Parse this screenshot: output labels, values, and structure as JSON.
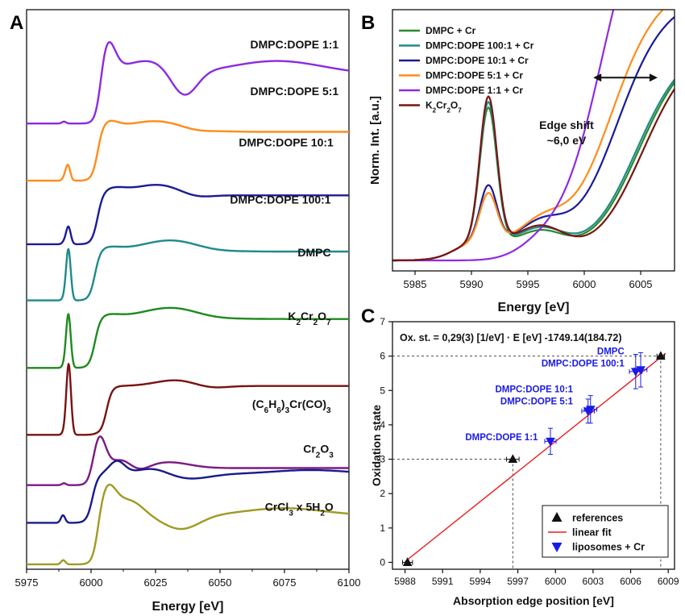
{
  "panels": [
    {
      "id": "a",
      "letter": "A"
    },
    {
      "id": "b",
      "letter": "B"
    },
    {
      "id": "c",
      "letter": "C"
    }
  ],
  "chart_data": [
    {
      "panel": "A",
      "type": "line",
      "xlabel": "Energy [eV]",
      "ylabel": "",
      "xlim": [
        5975,
        6100
      ],
      "xticks": [
        5975,
        6000,
        6025,
        6050,
        6075,
        6100
      ],
      "yticks": "none",
      "grid": false,
      "legend": "none",
      "series": [
        {
          "name": "DMPC:DOPE 1:1",
          "name_parts": [
            [
              "DMPC:DOPE 1:1",
              ""
            ]
          ],
          "color": "#8B2BE2",
          "offset": 9.02,
          "edge": 6003.5,
          "step": 1.0,
          "peak": [
            5991.3,
            0.0,
            1.0
          ],
          "feats": [
            [
              6006,
              0.72,
              3
            ],
            [
              6022,
              0.28,
              10
            ],
            [
              6036,
              -0.55,
              5
            ],
            [
              6072,
              0.28,
              18
            ]
          ],
          "label_x": 6096,
          "label_y": 10.56,
          "anchor": "end"
        },
        {
          "name": "DMPC:DOPE 5:1",
          "name_parts": [
            [
              "DMPC:DOPE 5:1",
              ""
            ]
          ],
          "color": "#FF8C1A",
          "offset": 7.85,
          "edge": 6002.5,
          "step": 1.0,
          "peak": [
            5991.0,
            0.32,
            0.9
          ],
          "feats": [
            [
              6006,
              0.18,
              4
            ],
            [
              6025,
              0.22,
              12
            ],
            [
              6040,
              -0.05,
              6
            ]
          ],
          "label_x": 6096,
          "label_y": 9.6,
          "anchor": "end"
        },
        {
          "name": "DMPC:DOPE 10:1",
          "name_parts": [
            [
              "DMPC:DOPE 10:1",
              ""
            ]
          ],
          "color": "#1B1B9A",
          "offset": 6.55,
          "edge": 6002.5,
          "step": 1.0,
          "peak": [
            5991.2,
            0.36,
            0.9
          ],
          "feats": [
            [
              6008,
              0.12,
              5
            ],
            [
              6026,
              0.22,
              10
            ],
            [
              6040,
              -0.08,
              6
            ]
          ],
          "label_x": 6094,
          "label_y": 8.55,
          "anchor": "end"
        },
        {
          "name": "DMPC:DOPE 100:1",
          "name_parts": [
            [
              "DMPC:DOPE 100:1",
              ""
            ]
          ],
          "color": "#1E8A8A",
          "offset": 5.4,
          "edge": 6001.5,
          "step": 1.0,
          "peak": [
            5991.2,
            1.05,
            0.9
          ],
          "feats": [
            [
              6006,
              0.08,
              5
            ],
            [
              6032,
              0.24,
              12
            ],
            [
              6045,
              -0.05,
              8
            ]
          ],
          "label_x": 6093,
          "label_y": 7.38,
          "anchor": "end"
        },
        {
          "name": "DMPC",
          "name_parts": [
            [
              "DMPC",
              ""
            ]
          ],
          "color": "#1E8A1E",
          "offset": 4.02,
          "edge": 6001.5,
          "step": 1.0,
          "peak": [
            5991.2,
            1.1,
            0.9
          ],
          "feats": [
            [
              6006,
              0.08,
              5
            ],
            [
              6032,
              0.24,
              12
            ],
            [
              6045,
              -0.05,
              8
            ]
          ],
          "label_x": 6093,
          "label_y": 6.3,
          "anchor": "end"
        },
        {
          "name": "K2Cr2O7",
          "name_parts": [
            [
              "K",
              ""
            ],
            [
              "2",
              "sub"
            ],
            [
              "Cr",
              ""
            ],
            [
              "2",
              "sub"
            ],
            [
              "O",
              ""
            ],
            [
              "7",
              "sub"
            ]
          ],
          "color": "#7A1212",
          "offset": 2.65,
          "edge": 6006.0,
          "step": 1.0,
          "peak": [
            5991.3,
            1.45,
            0.9
          ],
          "feats": [
            [
              6001,
              0.2,
              1.5
            ],
            [
              6033,
              0.12,
              8
            ],
            [
              6046,
              -0.05,
              6
            ]
          ],
          "label_x": 6093,
          "label_y": 5.0,
          "anchor": "end"
        },
        {
          "name": "(C6H6)3Cr(CO)3",
          "name_parts": [
            [
              "(C",
              ""
            ],
            [
              "6",
              "sub"
            ],
            [
              "H",
              ""
            ],
            [
              "6",
              "sub"
            ],
            [
              ")",
              ""
            ],
            [
              "3",
              "sub"
            ],
            [
              "Cr(CO)",
              ""
            ],
            [
              "3",
              "sub"
            ]
          ],
          "color": "#7B1A82",
          "offset": 1.62,
          "edge": 6000.0,
          "step": 0.35,
          "peak": [
            5991.0,
            0.0,
            1.0
          ],
          "feats": [
            [
              6003,
              0.72,
              2.5
            ],
            [
              6012,
              0.18,
              4
            ],
            [
              6018,
              -0.1,
              4
            ],
            [
              6030,
              0.12,
              8
            ]
          ],
          "label_x": 6093,
          "label_y": 3.2,
          "anchor": "end"
        },
        {
          "name": "Cr2O3",
          "name_parts": [
            [
              "Cr",
              ""
            ],
            [
              "2",
              "sub"
            ],
            [
              "O",
              ""
            ],
            [
              "3",
              "sub"
            ]
          ],
          "color": "#1A1A8C",
          "offset": 0.85,
          "edge": 6000.5,
          "step": 1.0,
          "peak": [
            5989.0,
            0.12,
            0.8
          ],
          "feats": [
            [
              6010,
              0.26,
              3
            ],
            [
              6024,
              0.12,
              6
            ],
            [
              6038,
              -0.1,
              8
            ],
            [
              6085,
              0.08,
              14
            ]
          ],
          "label_x": 6094,
          "label_y": 2.28,
          "anchor": "end"
        },
        {
          "name": "CrCl3 x 5H2O",
          "name_parts": [
            [
              "CrCl",
              ""
            ],
            [
              "3",
              "sub"
            ],
            [
              " x 5H",
              ""
            ],
            [
              "2",
              "sub"
            ],
            [
              "O",
              ""
            ]
          ],
          "color": "#A09A22",
          "offset": 0.0,
          "edge": 6002.5,
          "step": 1.0,
          "peak": [
            5989.0,
            0.05,
            0.8
          ],
          "feats": [
            [
              6006,
              0.62,
              3.5
            ],
            [
              6015,
              0.3,
              5
            ],
            [
              6035,
              -0.28,
              7
            ],
            [
              6075,
              0.15,
              15
            ]
          ],
          "label_x": 6094,
          "label_y": 1.1,
          "anchor": "end"
        }
      ]
    },
    {
      "panel": "B",
      "type": "line",
      "xlabel": "Energy [eV]",
      "ylabel": "Norm. Int. [a.u.]",
      "xlim": [
        5983,
        6008
      ],
      "xticks": [
        5985,
        5990,
        5995,
        6000,
        6005
      ],
      "yticks": "none",
      "grid": false,
      "legend": "top-left",
      "annotation": {
        "lines": [
          "Edge shift",
          "~6,0 eV"
        ],
        "arrow_from": 6000.8,
        "arrow_to": 6006.5,
        "arrow_y": 0.72
      },
      "series": [
        {
          "name": "DMPC + Cr",
          "name_parts": [
            [
              "DMPC + Cr",
              ""
            ]
          ],
          "color": "#2A8A2A",
          "pk": 0.51,
          "edge": 6004.8,
          "base": 0.1,
          "top": 0.92,
          "w": 2.2
        },
        {
          "name": "DMPC:DOPE 100:1 + Cr",
          "name_parts": [
            [
              "DMPC:DOPE 100:1 + Cr",
              ""
            ]
          ],
          "color": "#1F8B8B",
          "pk": 0.53,
          "edge": 6004.6,
          "base": 0.11,
          "top": 0.92,
          "w": 2.2
        },
        {
          "name": "DMPC:DOPE 10:1 + Cr",
          "name_parts": [
            [
              "DMPC:DOPE 10:1 + Cr",
              ""
            ]
          ],
          "color": "#1A1A9A",
          "pk": 0.21,
          "edge": 6002.8,
          "base": 0.12,
          "top": 1.1,
          "w": 2.2
        },
        {
          "name": "DMPC:DOPE 5:1 + Cr",
          "name_parts": [
            [
              "DMPC:DOPE 5:1 + Cr",
              ""
            ]
          ],
          "color": "#FF8C1A",
          "pk": 0.18,
          "edge": 6002.2,
          "base": 0.12,
          "top": 1.15,
          "w": 2.2
        },
        {
          "name": "DMPC:DOPE 1:1 + Cr",
          "name_parts": [
            [
              "DMPC:DOPE 1:1 + Cr",
              ""
            ]
          ],
          "color": "#8E2BE2",
          "pk": 0.0,
          "edge": 6001.5,
          "base": 0.04,
          "top": 1.6,
          "w": 2.0
        },
        {
          "name": "K2Cr2O7",
          "name_parts": [
            [
              "K",
              ""
            ],
            [
              "2",
              "sub"
            ],
            [
              "Cr",
              ""
            ],
            [
              "2",
              "sub"
            ],
            [
              "O",
              ""
            ],
            [
              "7",
              "sub"
            ]
          ],
          "color": "#7A1414",
          "pk": 0.55,
          "edge": 6005.2,
          "base": 0.12,
          "top": 0.92,
          "w": 2.2
        }
      ]
    },
    {
      "panel": "C",
      "type": "scatter",
      "title": "Ox. st. = 0,29(3) [1/eV] · E [eV] -1749.14(184.72)",
      "xlabel": "Absorption edge position [eV]",
      "ylabel": "Oxidation state",
      "xlim": [
        5987,
        6009.5
      ],
      "ylim": [
        -0.2,
        7
      ],
      "xticks": [
        5988,
        5991,
        5994,
        5997,
        6000,
        6003,
        6006,
        6009
      ],
      "yticks": [
        0,
        1,
        2,
        3,
        4,
        5,
        6,
        7
      ],
      "grid": false,
      "legend": "bottom-right",
      "fit_line": {
        "name": "linear fit",
        "color": "#E81E1E",
        "x": [
          5988.0,
          6008.8
        ],
        "y": [
          0.02,
          6.08
        ]
      },
      "series": [
        {
          "name": "references",
          "marker": "triangle-up",
          "color": "#111111",
          "points": [
            {
              "x": 5988.2,
              "y": 0.0,
              "xerr": 0.4,
              "yerr": 0
            },
            {
              "x": 5996.6,
              "y": 3.0,
              "xerr": 0.5,
              "yerr": 0
            },
            {
              "x": 6008.4,
              "y": 6.0,
              "xerr": 0.3,
              "yerr": 0
            }
          ]
        },
        {
          "name": "liposomes + Cr",
          "marker": "triangle-down",
          "color": "#1A1AE8",
          "points": [
            {
              "x": 5999.6,
              "y": 3.52,
              "xerr": 0.45,
              "yerr": 0.38
            },
            {
              "x": 6002.8,
              "y": 4.45,
              "xerr": 0.5,
              "yerr": 0.4
            },
            {
              "x": 6002.6,
              "y": 4.4,
              "xerr": 0.5,
              "yerr": 0.35
            },
            {
              "x": 6006.4,
              "y": 5.55,
              "xerr": 0.5,
              "yerr": 0.5
            },
            {
              "x": 6006.8,
              "y": 5.6,
              "xerr": 0.5,
              "yerr": 0.5
            }
          ]
        }
      ],
      "point_labels": [
        {
          "lines": [
            "DMPC:DOPE 1:1"
          ],
          "x": 5998.6,
          "y": 3.5
        },
        {
          "lines": [
            "DMPC:DOPE 10:1",
            "DMPC:DOPE 5:1"
          ],
          "x": 6001.4,
          "y": 4.55
        },
        {
          "lines": [
            "DMPC",
            "DMPC:DOPE 100:1"
          ],
          "x": 6005.5,
          "y": 5.65
        }
      ]
    }
  ]
}
